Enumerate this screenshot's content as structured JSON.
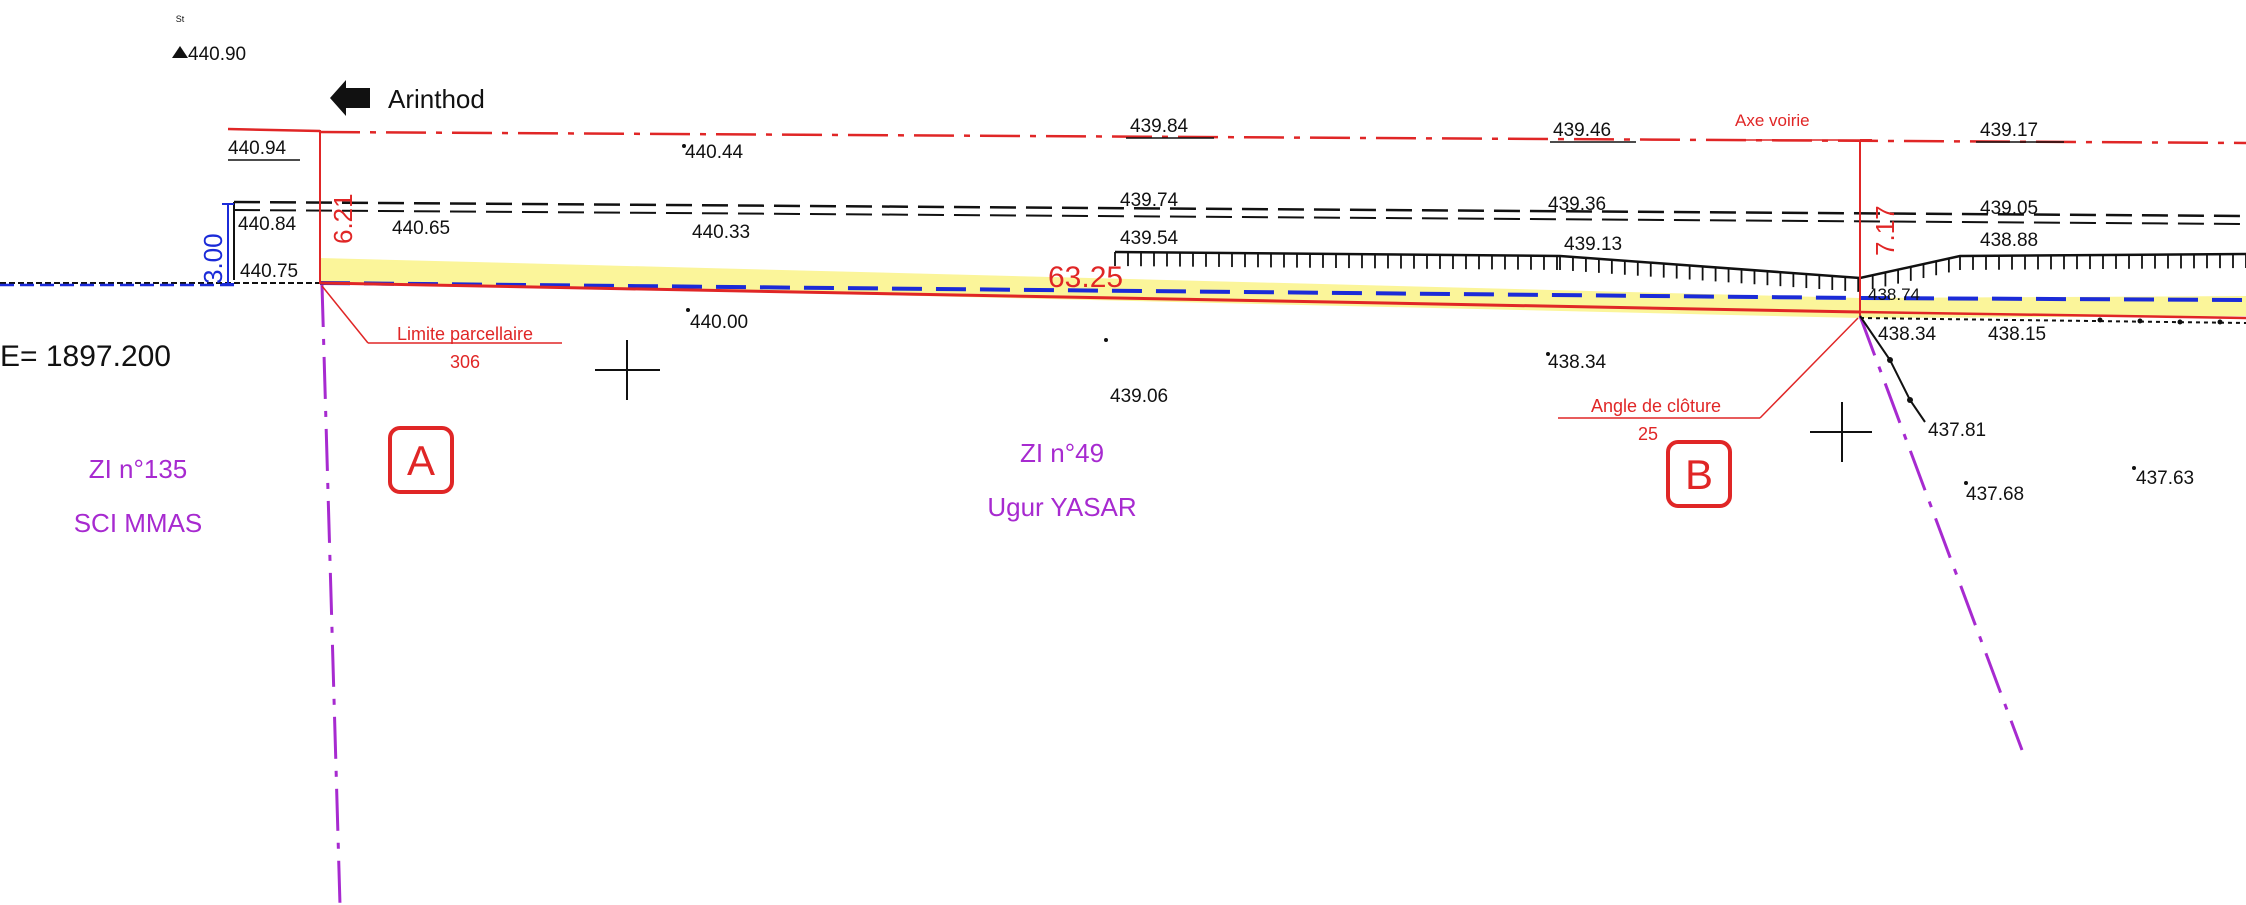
{
  "direction": {
    "label": "Arinthod"
  },
  "station": {
    "label": "St",
    "elevation": "440.90"
  },
  "chainage": {
    "label": "E= 1897.200"
  },
  "axis": {
    "label": "Axe voirie"
  },
  "dimensions": {
    "total_width_left": "6.21",
    "total_width_right": "7.17",
    "blue_width": "3.00",
    "length": "63.25"
  },
  "annotations": {
    "parcel_limit": {
      "label": "Limite parcellaire",
      "value": "306"
    },
    "fence_angle": {
      "label": "Angle de clôture",
      "value": "25"
    }
  },
  "points": [
    {
      "id": "A",
      "label": "A"
    },
    {
      "id": "B",
      "label": "B"
    }
  ],
  "parcels": [
    {
      "ref": "ZI n°135",
      "owner": "SCI MMAS"
    },
    {
      "ref": "ZI n°49",
      "owner": "Ugur YASAR"
    }
  ],
  "elevations": {
    "axis_row": [
      "440.94",
      "440.44",
      "439.84",
      "439.46",
      "439.17"
    ],
    "edge_row": [
      "440.84",
      "440.65",
      "440.33",
      "439.74",
      "439.36",
      "439.05"
    ],
    "ditch_row": [
      "440.75",
      "439.54",
      "439.13",
      "438.88",
      "438.74"
    ],
    "ground_row": [
      "440.00",
      "439.06",
      "438.34",
      "438.34",
      "438.15"
    ],
    "right_points": [
      "437.81",
      "437.68",
      "437.63"
    ]
  },
  "colors": {
    "red": "#e02626",
    "purple": "#a72ad0",
    "blue": "#1b2bd8",
    "yellow": "#fbf59a",
    "black": "#111111"
  }
}
